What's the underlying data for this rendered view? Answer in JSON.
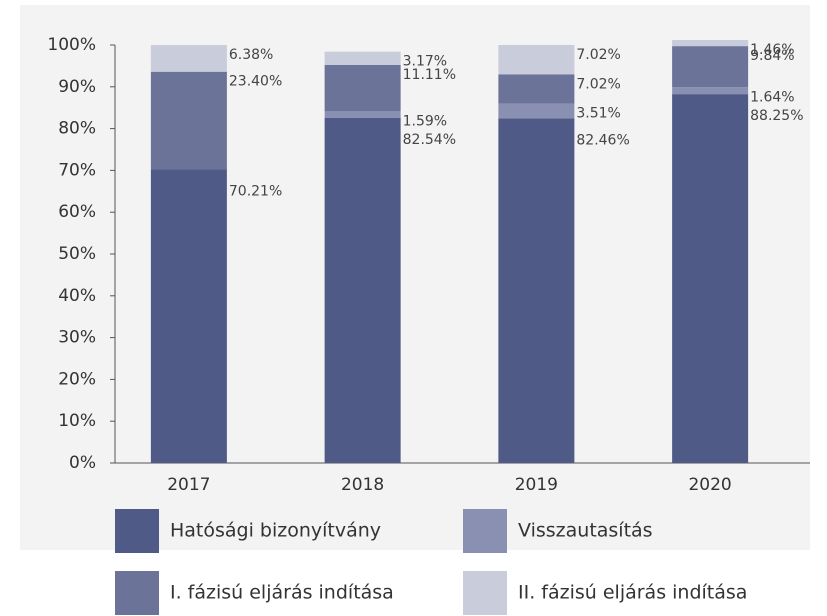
{
  "chart_data": {
    "type": "stacked_bar",
    "categories": [
      "2017",
      "2018",
      "2019",
      "2020"
    ],
    "series": [
      {
        "name": "Hatósági bizonyítvány",
        "color": "#505a86",
        "values": [
          70.21,
          82.54,
          82.46,
          88.25
        ],
        "value_labels": [
          "70.21%",
          "82.54%",
          "82.46%",
          "88.25%"
        ]
      },
      {
        "name": "Visszautasítás",
        "color": "#8a90b2",
        "values": [
          0,
          1.59,
          3.51,
          1.64
        ],
        "value_labels": [
          null,
          "1.59%",
          "3.51%",
          "1.64%"
        ]
      },
      {
        "name": "I. fázisú eljárás indítása",
        "color": "#6b7398",
        "values": [
          23.4,
          11.11,
          7.02,
          9.84
        ],
        "value_labels": [
          "23.40%",
          "11.11%",
          "7.02%",
          "9.84%"
        ]
      },
      {
        "name": "II. fázisú eljárás indítása",
        "color": "#c9ccdb",
        "values": [
          6.38,
          3.17,
          7.02,
          1.46
        ],
        "value_labels": [
          "6.38%",
          "3.17%",
          "7.02%",
          "1.46%"
        ]
      }
    ],
    "ylim": [
      0,
      100
    ],
    "yticks": [
      {
        "value": 0,
        "label": "0%"
      },
      {
        "value": 10,
        "label": "10%"
      },
      {
        "value": 20,
        "label": "20%"
      },
      {
        "value": 30,
        "label": "30%"
      },
      {
        "value": 40,
        "label": "40%"
      },
      {
        "value": 50,
        "label": "50%"
      },
      {
        "value": 60,
        "label": "60%"
      },
      {
        "value": 70,
        "label": "70%"
      },
      {
        "value": 80,
        "label": "80%"
      },
      {
        "value": 90,
        "label": "90%"
      },
      {
        "value": 100,
        "label": "100%"
      }
    ]
  }
}
